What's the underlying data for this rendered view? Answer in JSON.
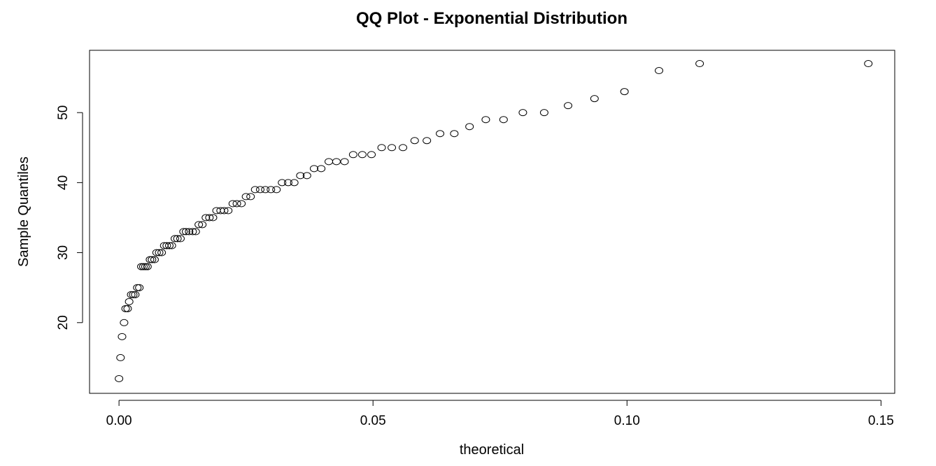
{
  "chart_data": {
    "type": "scatter",
    "title": "QQ Plot - Exponential Distribution",
    "xlabel": "theoretical",
    "ylabel": "Sample Quantiles",
    "xlim": [
      -0.0058,
      0.1527
    ],
    "ylim": [
      9.9,
      58.9
    ],
    "xticks": [
      0.0,
      0.05,
      0.1,
      0.15
    ],
    "xtick_labels": [
      "0.00",
      "0.05",
      "0.10",
      "0.15"
    ],
    "yticks": [
      20,
      30,
      40,
      50
    ],
    "ytick_labels": [
      "20",
      "30",
      "40",
      "50"
    ],
    "grid": false,
    "legend": "none",
    "marker": "open-circle",
    "colors": {
      "points": "#000000",
      "axes": "#000000",
      "background": "#ffffff"
    },
    "points": [
      [
        0.0,
        12
      ],
      [
        0.0003,
        15
      ],
      [
        0.0006,
        18
      ],
      [
        0.001,
        20
      ],
      [
        0.0013,
        22
      ],
      [
        0.0017,
        22
      ],
      [
        0.002,
        23
      ],
      [
        0.0024,
        24
      ],
      [
        0.0028,
        24
      ],
      [
        0.0032,
        24
      ],
      [
        0.0036,
        25
      ],
      [
        0.004,
        25
      ],
      [
        0.0044,
        28
      ],
      [
        0.0048,
        28
      ],
      [
        0.0052,
        28
      ],
      [
        0.0056,
        28
      ],
      [
        0.0061,
        29
      ],
      [
        0.0065,
        29
      ],
      [
        0.007,
        29
      ],
      [
        0.0074,
        30
      ],
      [
        0.0079,
        30
      ],
      [
        0.0084,
        30
      ],
      [
        0.0089,
        31
      ],
      [
        0.0094,
        31
      ],
      [
        0.0099,
        31
      ],
      [
        0.0104,
        31
      ],
      [
        0.011,
        32
      ],
      [
        0.0115,
        32
      ],
      [
        0.0121,
        32
      ],
      [
        0.0127,
        33
      ],
      [
        0.0132,
        33
      ],
      [
        0.0138,
        33
      ],
      [
        0.0145,
        33
      ],
      [
        0.0151,
        33
      ],
      [
        0.0157,
        34
      ],
      [
        0.0164,
        34
      ],
      [
        0.0171,
        35
      ],
      [
        0.0178,
        35
      ],
      [
        0.0185,
        35
      ],
      [
        0.0192,
        36
      ],
      [
        0.02,
        36
      ],
      [
        0.0207,
        36
      ],
      [
        0.0215,
        36
      ],
      [
        0.0224,
        37
      ],
      [
        0.0232,
        37
      ],
      [
        0.0241,
        37
      ],
      [
        0.025,
        38
      ],
      [
        0.0259,
        38
      ],
      [
        0.0268,
        39
      ],
      [
        0.0278,
        39
      ],
      [
        0.0288,
        39
      ],
      [
        0.0299,
        39
      ],
      [
        0.031,
        39
      ],
      [
        0.0321,
        40
      ],
      [
        0.0333,
        40
      ],
      [
        0.0345,
        40
      ],
      [
        0.0357,
        41
      ],
      [
        0.037,
        41
      ],
      [
        0.0384,
        42
      ],
      [
        0.0398,
        42
      ],
      [
        0.0413,
        43
      ],
      [
        0.0428,
        43
      ],
      [
        0.0444,
        43
      ],
      [
        0.0461,
        44
      ],
      [
        0.0479,
        44
      ],
      [
        0.0497,
        44
      ],
      [
        0.0517,
        45
      ],
      [
        0.0537,
        45
      ],
      [
        0.0559,
        45
      ],
      [
        0.0582,
        46
      ],
      [
        0.0606,
        46
      ],
      [
        0.0632,
        47
      ],
      [
        0.066,
        47
      ],
      [
        0.069,
        48
      ],
      [
        0.0722,
        49
      ],
      [
        0.0757,
        49
      ],
      [
        0.0795,
        50
      ],
      [
        0.0837,
        50
      ],
      [
        0.0884,
        51
      ],
      [
        0.0936,
        52
      ],
      [
        0.0995,
        53
      ],
      [
        0.1063,
        56
      ],
      [
        0.1143,
        57
      ],
      [
        0.1475,
        57
      ]
    ]
  }
}
